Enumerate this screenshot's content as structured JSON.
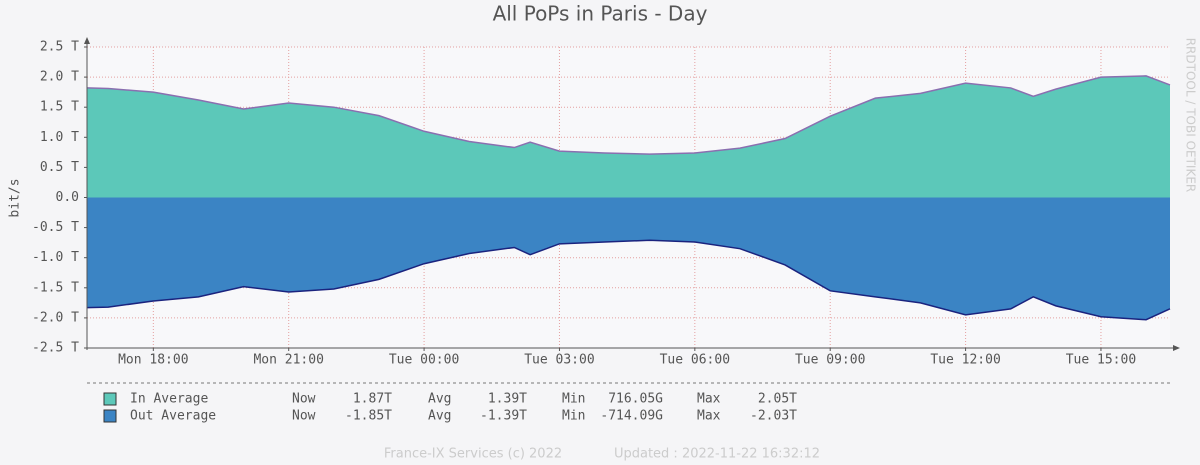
{
  "chart_data": {
    "type": "area",
    "title": "All PoPs in Paris - Day",
    "y_label": "bit/s",
    "watermark": "RRDTOOL / TOBI OETIKER",
    "x": [
      16.53,
      17,
      18,
      19,
      20,
      21,
      22,
      23,
      24,
      25,
      26,
      26.35,
      27,
      28,
      29,
      30,
      31,
      32,
      33,
      34,
      35,
      36,
      37,
      37.5,
      38,
      39,
      40,
      40.53
    ],
    "xlim": [
      16.53,
      40.53
    ],
    "xticks": [
      {
        "value": 18,
        "label": "Mon 18:00"
      },
      {
        "value": 21,
        "label": "Mon 21:00"
      },
      {
        "value": 24,
        "label": "Tue 00:00"
      },
      {
        "value": 27,
        "label": "Tue 03:00"
      },
      {
        "value": 30,
        "label": "Tue 06:00"
      },
      {
        "value": 33,
        "label": "Tue 09:00"
      },
      {
        "value": 36,
        "label": "Tue 12:00"
      },
      {
        "value": 39,
        "label": "Tue 15:00"
      }
    ],
    "ylim": [
      -2.5,
      2.5
    ],
    "yticks": [
      {
        "value": 2.5,
        "label": "2.5 T"
      },
      {
        "value": 2,
        "label": "2.0 T"
      },
      {
        "value": 1.5,
        "label": "1.5 T"
      },
      {
        "value": 1,
        "label": "1.0 T"
      },
      {
        "value": 0.5,
        "label": "0.5 T"
      },
      {
        "value": 0,
        "label": "0.0"
      },
      {
        "value": -0.5,
        "label": "-0.5 T"
      },
      {
        "value": -1,
        "label": "-1.0 T"
      },
      {
        "value": -1.5,
        "label": "-1.5 T"
      },
      {
        "value": -2,
        "label": "-2.0 T"
      },
      {
        "value": -2.5,
        "label": "-2.5 T"
      }
    ],
    "grid": true,
    "series": [
      {
        "name": "In Average",
        "color": "#5cc8b9",
        "line_color": "#8a6fb0",
        "values": [
          1.82,
          1.81,
          1.75,
          1.62,
          1.47,
          1.57,
          1.5,
          1.36,
          1.1,
          0.93,
          0.83,
          0.92,
          0.77,
          0.74,
          0.72,
          0.74,
          0.82,
          0.98,
          1.35,
          1.65,
          1.73,
          1.9,
          1.82,
          1.68,
          1.8,
          2.0,
          2.02,
          1.87
        ],
        "stats": [
          [
            "Now",
            "1.87T"
          ],
          [
            "Avg",
            "1.39T"
          ],
          [
            "Min",
            "716.05G"
          ],
          [
            "Max",
            "2.05T"
          ]
        ]
      },
      {
        "name": "Out Average",
        "color": "#3b84c4",
        "line_color": "#1a237e",
        "values": [
          -1.83,
          -1.82,
          -1.72,
          -1.65,
          -1.48,
          -1.57,
          -1.52,
          -1.36,
          -1.1,
          -0.93,
          -0.83,
          -0.95,
          -0.77,
          -0.74,
          -0.71,
          -0.74,
          -0.85,
          -1.12,
          -1.55,
          -1.65,
          -1.75,
          -1.95,
          -1.85,
          -1.65,
          -1.8,
          -1.98,
          -2.03,
          -1.85
        ],
        "stats": [
          [
            "Now",
            "-1.85T"
          ],
          [
            "Avg",
            "-1.39T"
          ],
          [
            "Min",
            "-714.09G"
          ],
          [
            "Max",
            "-2.03T"
          ]
        ]
      }
    ],
    "footer": "France-IX Services (c) 2022",
    "updated": "Updated : 2022-11-22 16:32:12"
  }
}
